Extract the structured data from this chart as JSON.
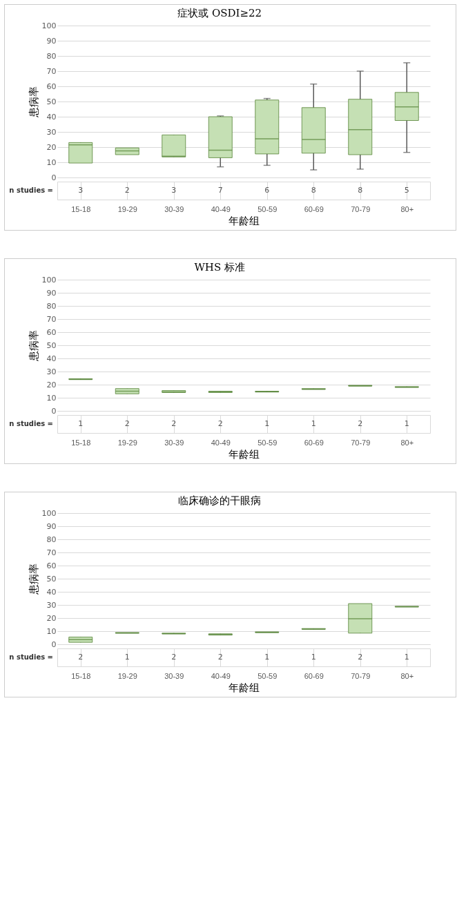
{
  "chart_data": [
    {
      "type": "box",
      "title": "症状或 OSDI≥22",
      "xlabel": "年龄组",
      "ylabel": "患病率",
      "categories": [
        "15-18",
        "19-29",
        "30-39",
        "40-49",
        "50-59",
        "60-69",
        "70-79",
        "80+"
      ],
      "ylim": [
        0,
        100
      ],
      "yticks": [
        0,
        10,
        20,
        30,
        40,
        50,
        60,
        70,
        80,
        90,
        100
      ],
      "grid": "y",
      "series": [
        {
          "color": "#c5e0b4",
          "boxes": [
            {
              "low": 9.5,
              "q1": 9.5,
              "median": 21.5,
              "q3": 23,
              "high": 23
            },
            {
              "low": 15,
              "q1": 15,
              "median": 17.5,
              "q3": 19.5,
              "high": 19.5
            },
            {
              "low": 13.5,
              "q1": 13.5,
              "median": 14,
              "q3": 28,
              "high": 28
            },
            {
              "low": 7,
              "q1": 13,
              "median": 18,
              "q3": 40,
              "high": 40.5
            },
            {
              "low": 8,
              "q1": 15.5,
              "median": 25.5,
              "q3": 51,
              "high": 52
            },
            {
              "low": 5,
              "q1": 16,
              "median": 25,
              "q3": 46,
              "high": 61.5
            },
            {
              "low": 5.5,
              "q1": 15,
              "median": 31.5,
              "q3": 51.5,
              "high": 70
            },
            {
              "low": 16.5,
              "q1": 37.5,
              "median": 46.5,
              "q3": 56,
              "high": 75.5
            }
          ]
        }
      ],
      "annotations": [
        "n studies =",
        {
          "text": "3",
          "x": "15-18"
        },
        {
          "text": "2",
          "x": "19-29"
        },
        {
          "text": "3",
          "x": "30-39"
        },
        {
          "text": "7",
          "x": "40-49"
        },
        {
          "text": "6",
          "x": "50-59"
        },
        {
          "text": "8",
          "x": "60-69"
        },
        {
          "text": "8",
          "x": "70-79"
        },
        {
          "text": "5",
          "x": "80+"
        }
      ]
    },
    {
      "type": "box",
      "title": "WHS 标准",
      "xlabel": "年龄组",
      "ylabel": "患病率",
      "categories": [
        "15-18",
        "19-29",
        "30-39",
        "40-49",
        "50-59",
        "60-69",
        "70-79",
        "80+"
      ],
      "ylim": [
        0,
        100
      ],
      "yticks": [
        0,
        10,
        20,
        30,
        40,
        50,
        60,
        70,
        80,
        90,
        100
      ],
      "grid": "y",
      "series": [
        {
          "color": "#c5e0b4",
          "boxes": [
            {
              "low": 24,
              "q1": 24,
              "median": 24,
              "q3": 24.5,
              "high": 24.5
            },
            {
              "low": 13,
              "q1": 13,
              "median": 15,
              "q3": 17,
              "high": 17
            },
            {
              "low": 14,
              "q1": 14,
              "median": 14.5,
              "q3": 15.5,
              "high": 15.5
            },
            {
              "low": 14,
              "q1": 14,
              "median": 14.5,
              "q3": 15,
              "high": 15
            },
            {
              "low": 14.5,
              "q1": 14.5,
              "median": 14.5,
              "q3": 15,
              "high": 15
            },
            {
              "low": 16.5,
              "q1": 16.5,
              "median": 16.5,
              "q3": 17,
              "high": 17
            },
            {
              "low": 19,
              "q1": 19,
              "median": 19,
              "q3": 19.5,
              "high": 19.5
            },
            {
              "low": 18,
              "q1": 18,
              "median": 18,
              "q3": 18.5,
              "high": 18.5
            }
          ]
        }
      ],
      "annotations": [
        "n studies =",
        {
          "text": "1",
          "x": "15-18"
        },
        {
          "text": "2",
          "x": "19-29"
        },
        {
          "text": "2",
          "x": "30-39"
        },
        {
          "text": "2",
          "x": "40-49"
        },
        {
          "text": "1",
          "x": "50-59"
        },
        {
          "text": "1",
          "x": "60-69"
        },
        {
          "text": "2",
          "x": "70-79"
        },
        {
          "text": "1",
          "x": "80+"
        }
      ]
    },
    {
      "type": "box",
      "title": "临床确诊的干眼病",
      "xlabel": "年龄组",
      "ylabel": "患病率",
      "categories": [
        "15-18",
        "19-29",
        "30-39",
        "40-49",
        "50-59",
        "60-69",
        "70-79",
        "80+"
      ],
      "ylim": [
        0,
        100
      ],
      "yticks": [
        0,
        10,
        20,
        30,
        40,
        50,
        60,
        70,
        80,
        90,
        100
      ],
      "grid": "y",
      "series": [
        {
          "color": "#c5e0b4",
          "boxes": [
            {
              "low": 1.5,
              "q1": 1.5,
              "median": 3.5,
              "q3": 5.5,
              "high": 5.5
            },
            {
              "low": 8.5,
              "q1": 8.5,
              "median": 8.5,
              "q3": 9,
              "high": 9
            },
            {
              "low": 8,
              "q1": 8,
              "median": 8,
              "q3": 8.5,
              "high": 8.5
            },
            {
              "low": 7,
              "q1": 7,
              "median": 7.5,
              "q3": 8,
              "high": 8
            },
            {
              "low": 9,
              "q1": 9,
              "median": 9,
              "q3": 9.5,
              "high": 9.5
            },
            {
              "low": 11.5,
              "q1": 11.5,
              "median": 11.5,
              "q3": 12,
              "high": 12
            },
            {
              "low": 8.5,
              "q1": 8.5,
              "median": 19.5,
              "q3": 31,
              "high": 31
            },
            {
              "low": 28.5,
              "q1": 28.5,
              "median": 28.5,
              "q3": 29,
              "high": 29
            }
          ]
        }
      ],
      "annotations": [
        "n studies =",
        {
          "text": "2",
          "x": "15-18"
        },
        {
          "text": "1",
          "x": "19-29"
        },
        {
          "text": "2",
          "x": "30-39"
        },
        {
          "text": "2",
          "x": "40-49"
        },
        {
          "text": "1",
          "x": "50-59"
        },
        {
          "text": "1",
          "x": "60-69"
        },
        {
          "text": "2",
          "x": "70-79"
        },
        {
          "text": "1",
          "x": "80+"
        }
      ]
    }
  ]
}
